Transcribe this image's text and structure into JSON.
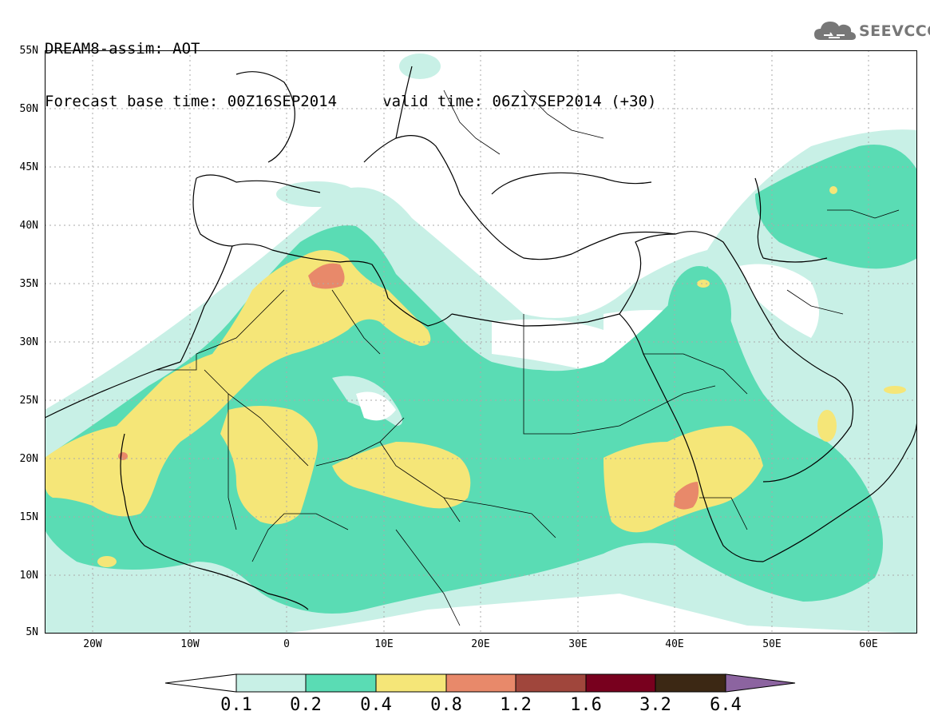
{
  "title": {
    "line1": "DREAM8-assim: AOT",
    "line2": "Forecast base time: 00Z16SEP2014     valid time: 06Z17SEP2014 (+30)"
  },
  "logo": {
    "text": "SEEVCCC",
    "icon": "cloud-logo-icon"
  },
  "map": {
    "lon_range": [
      -25,
      65
    ],
    "lat_range": [
      5,
      55
    ],
    "y_ticks": [
      "55N",
      "50N",
      "45N",
      "40N",
      "35N",
      "30N",
      "25N",
      "20N",
      "15N",
      "10N",
      "5N"
    ],
    "x_ticks": [
      "20W",
      "10W",
      "0",
      "10E",
      "20E",
      "30E",
      "40E",
      "50E",
      "60E"
    ],
    "grid": "dotted"
  },
  "colorbar": {
    "colors": [
      "#ffffff",
      "#c8f0e6",
      "#5adcb4",
      "#f5e678",
      "#e8896a",
      "#a0463c",
      "#78001e",
      "#3c2814",
      "#8c64a0"
    ],
    "labels": [
      "0.1",
      "0.2",
      "0.4",
      "0.8",
      "1.2",
      "1.6",
      "3.2",
      "6.4"
    ]
  }
}
